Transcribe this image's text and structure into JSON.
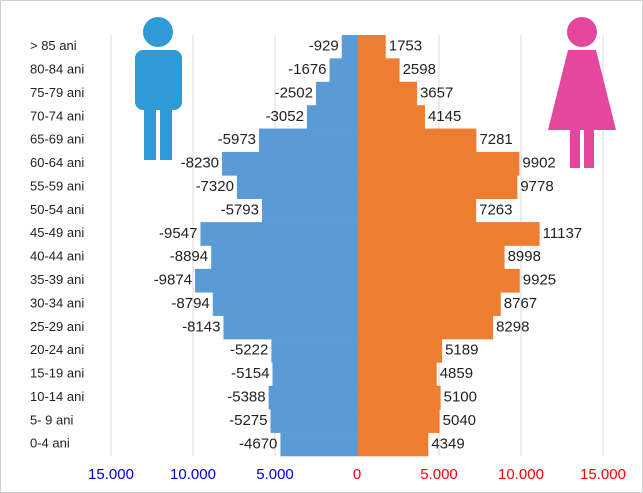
{
  "chart_data": {
    "type": "pyramid",
    "categories": [
      "> 85 ani",
      "80-84 ani",
      "75-79 ani",
      "70-74 ani",
      "65-69 ani",
      "60-64 ani",
      "55-59 ani",
      "50-54 ani",
      "45-49 ani",
      "40-44 ani",
      "35-39 ani",
      "30-34 ani",
      "25-29 ani",
      "20-24 ani",
      "15-19 ani",
      "10-14 ani",
      "5- 9 ani",
      "0-4 ani"
    ],
    "series": [
      {
        "color": "#5b9bd5",
        "values": [
          -929,
          -1676,
          -2502,
          -3052,
          -5973,
          -8230,
          -7320,
          -5793,
          -9547,
          -8894,
          -9874,
          -8794,
          -8143,
          -5222,
          -5154,
          -5388,
          -5275,
          -4670
        ]
      },
      {
        "color": "#ed7d31",
        "values": [
          1753,
          2598,
          3657,
          4145,
          7281,
          9902,
          9778,
          7263,
          11137,
          8998,
          9925,
          8767,
          8298,
          5189,
          4859,
          5100,
          5040,
          4349
        ]
      }
    ],
    "xlim": [
      -15000,
      15000
    ],
    "xticks": [
      {
        "value": -15000,
        "label": "15.000"
      },
      {
        "value": -10000,
        "label": "10.000"
      },
      {
        "value": -5000,
        "label": "5.000"
      },
      0,
      {
        "value": 5000,
        "label": "5.000"
      },
      {
        "value": 10000,
        "label": "10.000"
      },
      {
        "value": 15000,
        "label": "15.000"
      }
    ],
    "negative_tick_color": "#0000cc",
    "nonnegative_tick_color": "#ff0000",
    "grid": true
  }
}
